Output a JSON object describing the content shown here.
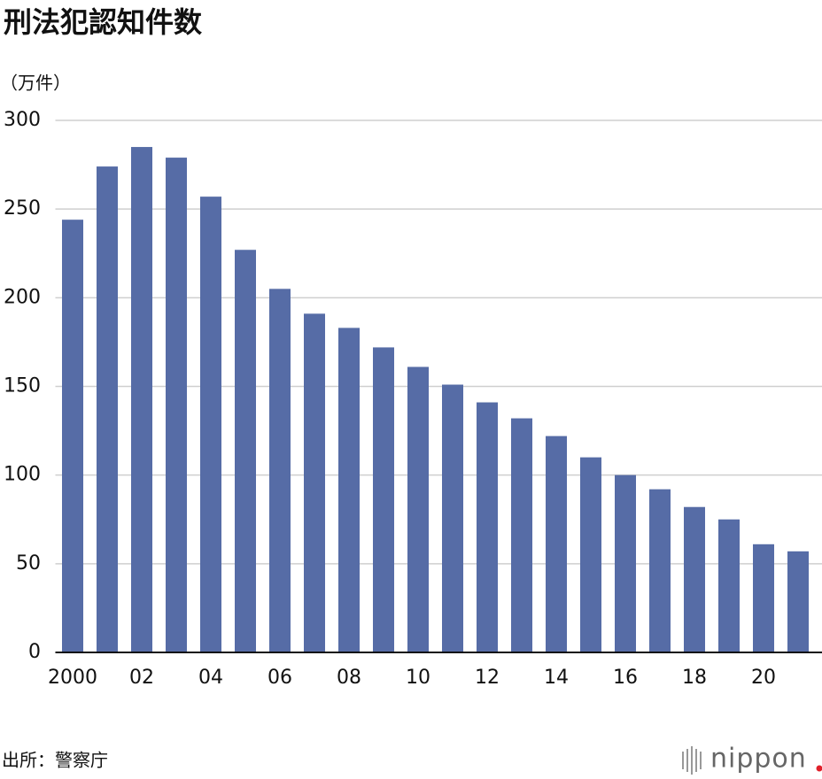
{
  "chart_data": {
    "type": "bar",
    "title": "刑法犯認知件数",
    "y_axis_label": "（万件）",
    "categories": [
      "2000",
      null,
      "02",
      null,
      "04",
      null,
      "06",
      null,
      "08",
      null,
      "10",
      null,
      "12",
      null,
      "14",
      null,
      "16",
      null,
      "18",
      null,
      "20",
      null
    ],
    "values": [
      244,
      274,
      285,
      279,
      257,
      227,
      205,
      191,
      183,
      172,
      161,
      151,
      141,
      132,
      122,
      110,
      100,
      92,
      82,
      75,
      61,
      57
    ],
    "color": "#566ca6",
    "ylim": [
      0,
      300
    ],
    "yticks": [
      0,
      50,
      100,
      150,
      200,
      250,
      300
    ],
    "grid": true,
    "source": "出所：警察庁",
    "logo": "nippon"
  }
}
